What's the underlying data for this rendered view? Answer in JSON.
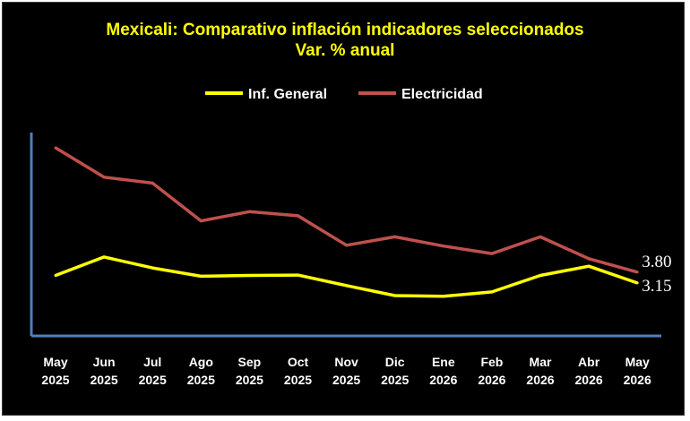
{
  "chart_data": {
    "type": "line",
    "title": "Mexicali: Comparativo inflación indicadores seleccionados",
    "subtitle": "Var. % anual",
    "categories": [
      [
        "May",
        "2025"
      ],
      [
        "Jun",
        "2025"
      ],
      [
        "Jul",
        "2025"
      ],
      [
        "Ago",
        "2025"
      ],
      [
        "Sep",
        "2025"
      ],
      [
        "Oct",
        "2025"
      ],
      [
        "Nov",
        "2025"
      ],
      [
        "Dic",
        "2025"
      ],
      [
        "Ene",
        "2026"
      ],
      [
        "Feb",
        "2026"
      ],
      [
        "Mar",
        "2026"
      ],
      [
        "Abr",
        "2026"
      ],
      [
        "May",
        "2026"
      ]
    ],
    "series": [
      {
        "name": "Inf. General",
        "color": "#ffff00",
        "values": [
          3.6,
          4.7,
          4.05,
          3.55,
          3.6,
          3.62,
          3.0,
          2.4,
          2.36,
          2.62,
          3.6,
          4.15,
          3.15
        ],
        "end_label": "3.15"
      },
      {
        "name": "Electricidad",
        "color": "#c0504d",
        "values": [
          11.2,
          9.45,
          9.1,
          6.85,
          7.4,
          7.15,
          5.4,
          5.9,
          5.35,
          4.9,
          5.9,
          4.6,
          3.8
        ],
        "end_label": "3.80"
      }
    ],
    "legend_position": "top",
    "grid": false,
    "axis_color": "#4f81bd"
  }
}
